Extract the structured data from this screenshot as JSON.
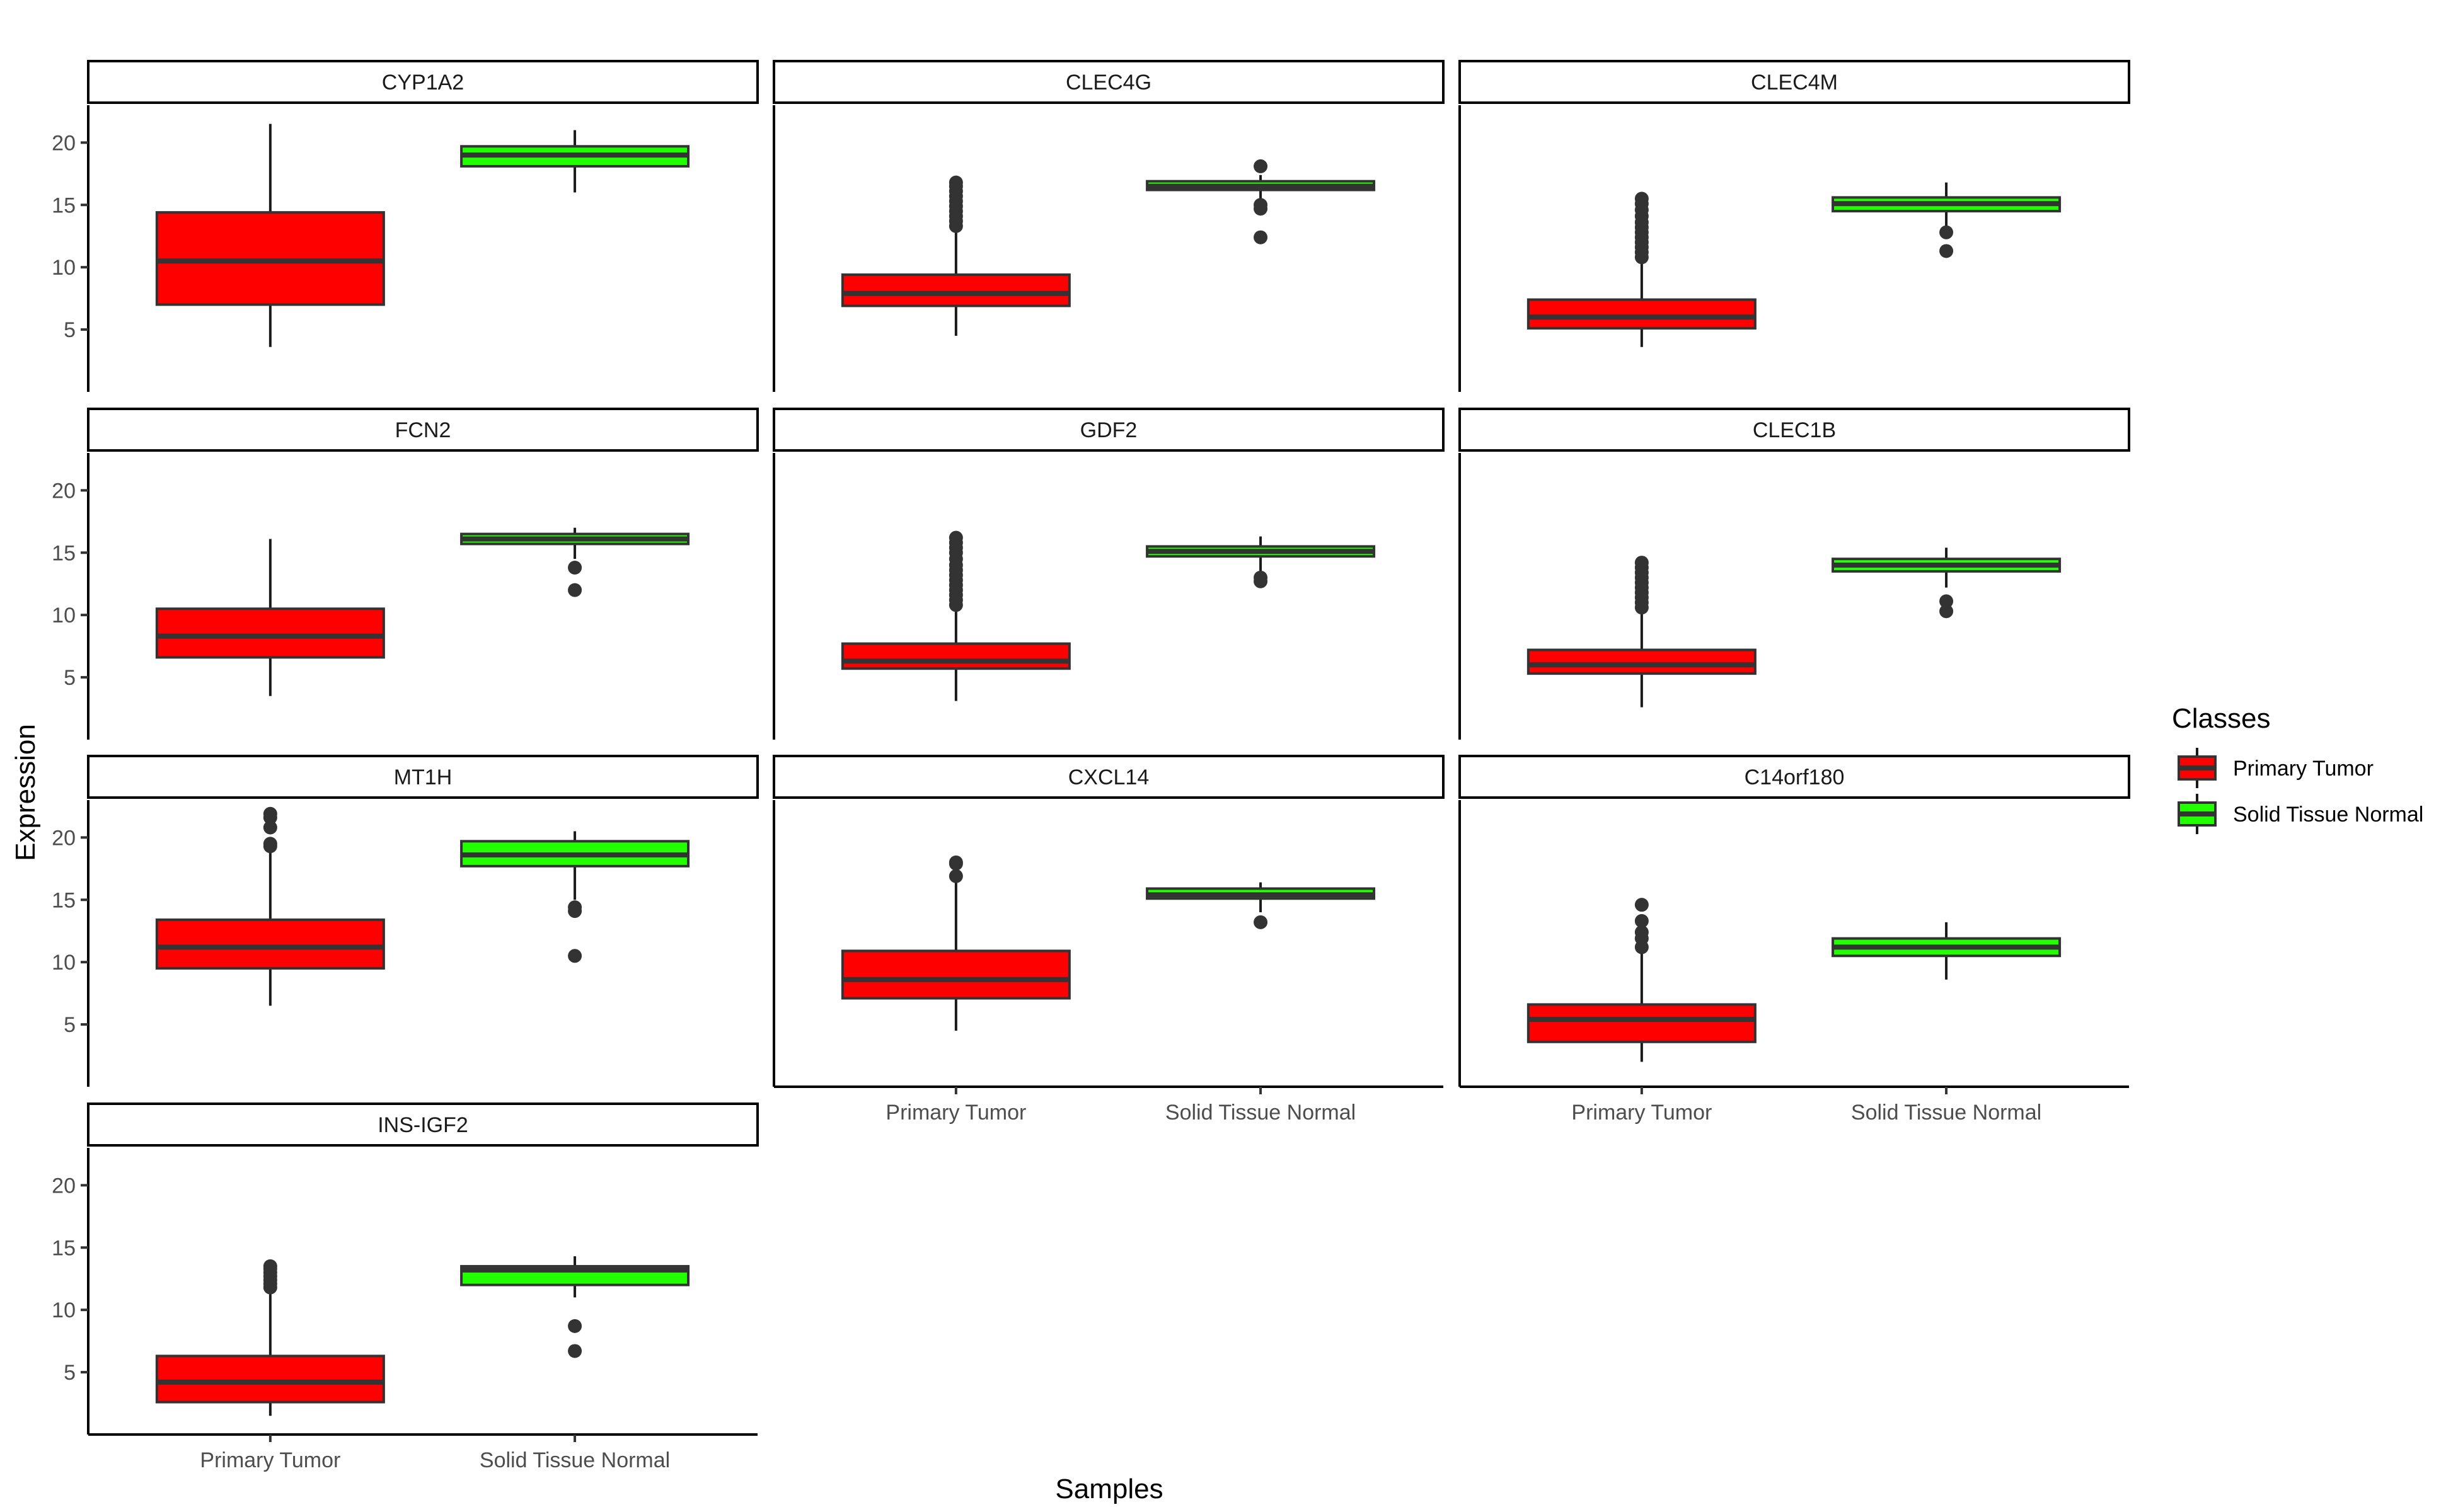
{
  "chart_data": {
    "type": "boxplot",
    "xlabel": "Samples",
    "ylabel": "Expression",
    "categories": [
      "Primary Tumor",
      "Solid Tissue Normal"
    ],
    "ylim": [
      0,
      23
    ],
    "yticks": [
      5,
      10,
      15,
      20
    ],
    "legend": {
      "title": "Classes",
      "position": "right",
      "entries": [
        {
          "label": "Primary Tumor",
          "color": "#ff0000"
        },
        {
          "label": "Solid Tissue Normal",
          "color": "#22ff00"
        }
      ]
    },
    "panels": [
      {
        "gene": "CYP1A2",
        "boxes": [
          {
            "min": 3.6,
            "q1": 7.0,
            "median": 10.5,
            "q3": 14.4,
            "max": 21.5,
            "outliers": []
          },
          {
            "min": 16.0,
            "q1": 18.1,
            "median": 19.0,
            "q3": 19.7,
            "max": 21.0,
            "outliers": []
          }
        ]
      },
      {
        "gene": "CLEC4G",
        "boxes": [
          {
            "min": 4.5,
            "q1": 6.9,
            "median": 7.9,
            "q3": 9.4,
            "max": 13.0,
            "outliers": [
              13.3,
              13.7,
              14.1,
              14.5,
              14.9,
              15.3,
              15.7,
              16.1,
              16.5,
              16.8
            ]
          },
          {
            "min": 15.5,
            "q1": 16.2,
            "median": 16.5,
            "q3": 16.9,
            "max": 17.4,
            "outliers": [
              18.1,
              15.0,
              14.7,
              12.4
            ]
          }
        ]
      },
      {
        "gene": "CLEC4M",
        "boxes": [
          {
            "min": 3.6,
            "q1": 5.1,
            "median": 6.0,
            "q3": 7.4,
            "max": 10.5,
            "outliers": [
              10.8,
              11.2,
              11.6,
              12.0,
              12.4,
              12.8,
              13.2,
              13.6,
              14.1,
              14.6,
              15.1,
              15.5
            ]
          },
          {
            "min": 13.3,
            "q1": 14.5,
            "median": 15.1,
            "q3": 15.6,
            "max": 16.8,
            "outliers": [
              12.8,
              11.3
            ]
          }
        ]
      },
      {
        "gene": "FCN2",
        "boxes": [
          {
            "min": 3.5,
            "q1": 6.6,
            "median": 8.3,
            "q3": 10.5,
            "max": 16.1,
            "outliers": []
          },
          {
            "min": 14.5,
            "q1": 15.7,
            "median": 16.1,
            "q3": 16.5,
            "max": 17.0,
            "outliers": [
              13.8,
              12.0
            ]
          }
        ]
      },
      {
        "gene": "GDF2",
        "boxes": [
          {
            "min": 3.1,
            "q1": 5.7,
            "median": 6.3,
            "q3": 7.7,
            "max": 10.5,
            "outliers": [
              10.8,
              11.2,
              11.6,
              12.0,
              12.4,
              12.8,
              13.2,
              13.6,
              14.0,
              14.5,
              15.0,
              15.4,
              15.8,
              16.2
            ]
          },
          {
            "min": 13.5,
            "q1": 14.7,
            "median": 15.1,
            "q3": 15.5,
            "max": 16.3,
            "outliers": [
              13.0,
              12.7
            ]
          }
        ]
      },
      {
        "gene": "CLEC1B",
        "boxes": [
          {
            "min": 2.6,
            "q1": 5.3,
            "median": 6.0,
            "q3": 7.2,
            "max": 10.2,
            "outliers": [
              10.6,
              11.0,
              11.4,
              11.8,
              12.2,
              12.6,
              13.0,
              13.4,
              13.8,
              14.2
            ]
          },
          {
            "min": 12.2,
            "q1": 13.5,
            "median": 14.0,
            "q3": 14.5,
            "max": 15.4,
            "outliers": [
              11.1,
              10.3
            ]
          }
        ]
      },
      {
        "gene": "MT1H",
        "boxes": [
          {
            "min": 6.5,
            "q1": 9.5,
            "median": 11.2,
            "q3": 13.4,
            "max": 18.9,
            "outliers": [
              19.3,
              19.5,
              20.8,
              21.6,
              21.9
            ]
          },
          {
            "min": 15.0,
            "q1": 17.7,
            "median": 18.6,
            "q3": 19.7,
            "max": 20.5,
            "outliers": [
              14.4,
              14.1,
              10.5
            ]
          }
        ]
      },
      {
        "gene": "CXCL14",
        "boxes": [
          {
            "min": 4.5,
            "q1": 7.1,
            "median": 8.6,
            "q3": 10.9,
            "max": 16.7,
            "outliers": [
              16.9,
              17.9,
              18.0
            ]
          },
          {
            "min": 14.0,
            "q1": 15.1,
            "median": 15.4,
            "q3": 15.9,
            "max": 16.4,
            "outliers": [
              13.2
            ]
          }
        ]
      },
      {
        "gene": "C14orf180",
        "boxes": [
          {
            "min": 2.0,
            "q1": 3.6,
            "median": 5.4,
            "q3": 6.6,
            "max": 10.8,
            "outliers": [
              11.2,
              11.9,
              12.4,
              13.3,
              14.6
            ]
          },
          {
            "min": 8.6,
            "q1": 10.5,
            "median": 11.2,
            "q3": 11.9,
            "max": 13.2,
            "outliers": []
          }
        ]
      },
      {
        "gene": "INS-IGF2",
        "boxes": [
          {
            "min": 1.5,
            "q1": 2.6,
            "median": 4.2,
            "q3": 6.3,
            "max": 11.5,
            "outliers": [
              11.8,
              12.1,
              12.4,
              12.7,
              13.0,
              13.3,
              13.5
            ]
          },
          {
            "min": 11.0,
            "q1": 12.0,
            "median": 13.2,
            "q3": 13.5,
            "max": 14.3,
            "outliers": [
              8.7,
              6.7
            ]
          }
        ]
      }
    ]
  }
}
